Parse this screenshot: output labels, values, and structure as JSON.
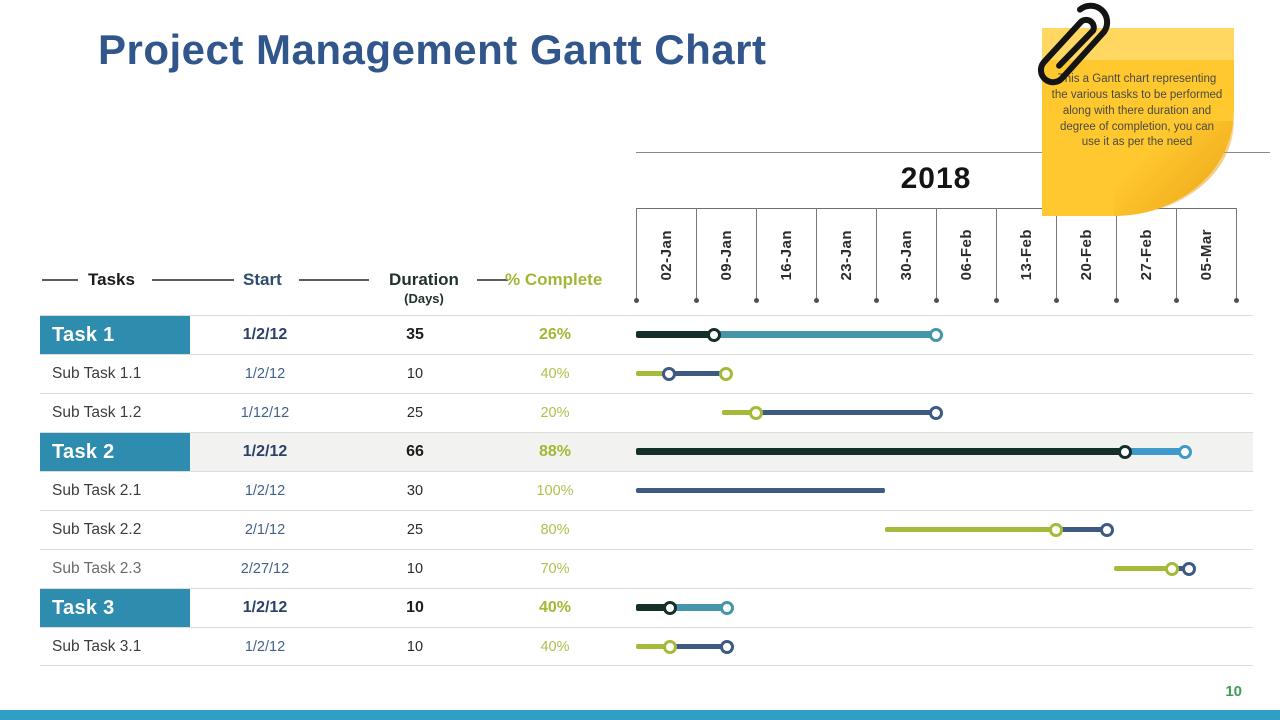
{
  "slide": {
    "title": "Project Management Gantt Chart",
    "page_number": "10"
  },
  "note": {
    "text": "This  a Gantt chart representing  the various tasks to be performed  along with there  duration  and degree  of completion,  you can use it as per the need"
  },
  "table_headers": {
    "tasks": "Tasks",
    "start": "Start",
    "duration": "Duration",
    "duration_sub": "(Days)",
    "complete": "% Complete"
  },
  "chart_data": {
    "type": "gantt",
    "title": "Project Management Gantt Chart",
    "year_label": "2018",
    "week_labels": [
      "02-Jan",
      "09-Jan",
      "16-Jan",
      "23-Jan",
      "30-Jan",
      "06-Feb",
      "13-Feb",
      "20-Feb",
      "27-Feb",
      "05-Mar"
    ],
    "timeline_days_per_column": 7,
    "colors": {
      "parent_done": "#15302A",
      "parent_remaining_teal": "#4596A9",
      "parent_remaining_blue": "#3F99CB",
      "sub_done_olive": "#A6BA39",
      "sub_remaining_navy": "#3C5A82",
      "task_label_box": "#2E8CAE",
      "percent_text": "#A4B733",
      "bottom_bar": "#2EA0C5",
      "page_number_green": "#3C9E56",
      "title_blue": "#31568B",
      "note_yellow": "#FFC82E"
    },
    "tasks": [
      {
        "name": "Task 1",
        "start": "1/2/12",
        "duration_days": "35",
        "percent_complete": "26%",
        "is_parent": true,
        "shaded": false,
        "muted": false,
        "bar": {
          "segments": [
            {
              "from": 0,
              "to": 9.1,
              "color": "#15302A"
            },
            {
              "from": 9.1,
              "to": 35,
              "color": "#4596A9"
            }
          ],
          "markers": [
            {
              "day": 9.1,
              "color": "#15302A"
            },
            {
              "day": 35,
              "color": "#4596A9"
            }
          ]
        }
      },
      {
        "name": "Sub Task 1.1",
        "start": "1/2/12",
        "duration_days": "10",
        "percent_complete": "40%",
        "is_parent": false,
        "shaded": false,
        "muted": false,
        "bar": {
          "segments": [
            {
              "from": 0,
              "to": 3.8,
              "color": "#A6BA39"
            },
            {
              "from": 3.8,
              "to": 10.5,
              "color": "#3C5A82"
            }
          ],
          "markers": [
            {
              "day": 3.8,
              "color": "#3C5A82"
            },
            {
              "day": 10.5,
              "color": "#A6BA39"
            }
          ]
        }
      },
      {
        "name": "Sub Task 1.2",
        "start": "1/12/12",
        "duration_days": "25",
        "percent_complete": "20%",
        "is_parent": false,
        "shaded": false,
        "muted": false,
        "bar": {
          "segments": [
            {
              "from": 10,
              "to": 14,
              "color": "#A6BA39"
            },
            {
              "from": 14,
              "to": 35,
              "color": "#3C5A82"
            }
          ],
          "markers": [
            {
              "day": 14,
              "color": "#A6BA39"
            },
            {
              "day": 35,
              "color": "#3C5A82"
            }
          ]
        }
      },
      {
        "name": "Task 2",
        "start": "1/2/12",
        "duration_days": "66",
        "percent_complete": "88%",
        "is_parent": true,
        "shaded": true,
        "muted": false,
        "bar": {
          "segments": [
            {
              "from": 0,
              "to": 57,
              "color": "#15302A"
            },
            {
              "from": 57,
              "to": 64,
              "color": "#3F99CB"
            }
          ],
          "markers": [
            {
              "day": 57,
              "color": "#15302A"
            },
            {
              "day": 64,
              "color": "#3F99CB"
            }
          ]
        }
      },
      {
        "name": "Sub Task 2.1",
        "start": "1/2/12",
        "duration_days": "30",
        "percent_complete": "100%",
        "is_parent": false,
        "shaded": false,
        "muted": false,
        "bar": {
          "segments": [
            {
              "from": 0,
              "to": 29,
              "color": "#3C5A82"
            }
          ],
          "markers": []
        }
      },
      {
        "name": "Sub Task 2.2",
        "start": "2/1/12",
        "duration_days": "25",
        "percent_complete": "80%",
        "is_parent": false,
        "shaded": false,
        "muted": false,
        "bar": {
          "segments": [
            {
              "from": 29,
              "to": 49,
              "color": "#A6BA39"
            },
            {
              "from": 49,
              "to": 55,
              "color": "#3C5A82"
            }
          ],
          "markers": [
            {
              "day": 49,
              "color": "#A6BA39"
            },
            {
              "day": 55,
              "color": "#3C5A82"
            }
          ]
        }
      },
      {
        "name": "Sub Task 2.3",
        "start": "2/27/12",
        "duration_days": "10",
        "percent_complete": "70%",
        "is_parent": false,
        "shaded": false,
        "muted": true,
        "bar": {
          "segments": [
            {
              "from": 55.8,
              "to": 62.5,
              "color": "#A6BA39"
            },
            {
              "from": 62.5,
              "to": 64.5,
              "color": "#3C5A82"
            }
          ],
          "markers": [
            {
              "day": 62.5,
              "color": "#A6BA39"
            },
            {
              "day": 64.5,
              "color": "#3C5A82"
            }
          ]
        }
      },
      {
        "name": "Task 3",
        "start": "1/2/12",
        "duration_days": "10",
        "percent_complete": "40%",
        "is_parent": true,
        "shaded": false,
        "muted": false,
        "bar": {
          "segments": [
            {
              "from": 0,
              "to": 4,
              "color": "#15302A"
            },
            {
              "from": 4,
              "to": 10.6,
              "color": "#4596A9"
            }
          ],
          "markers": [
            {
              "day": 4,
              "color": "#15302A"
            },
            {
              "day": 10.6,
              "color": "#4596A9"
            }
          ]
        }
      },
      {
        "name": "Sub Task 3.1",
        "start": "1/2/12",
        "duration_days": "10",
        "percent_complete": "40%",
        "is_parent": false,
        "shaded": false,
        "muted": false,
        "bar": {
          "segments": [
            {
              "from": 0,
              "to": 4,
              "color": "#A6BA39"
            },
            {
              "from": 4,
              "to": 10.6,
              "color": "#3C5A82"
            }
          ],
          "markers": [
            {
              "day": 4,
              "color": "#A6BA39"
            },
            {
              "day": 10.6,
              "color": "#3C5A82"
            }
          ]
        }
      }
    ]
  }
}
